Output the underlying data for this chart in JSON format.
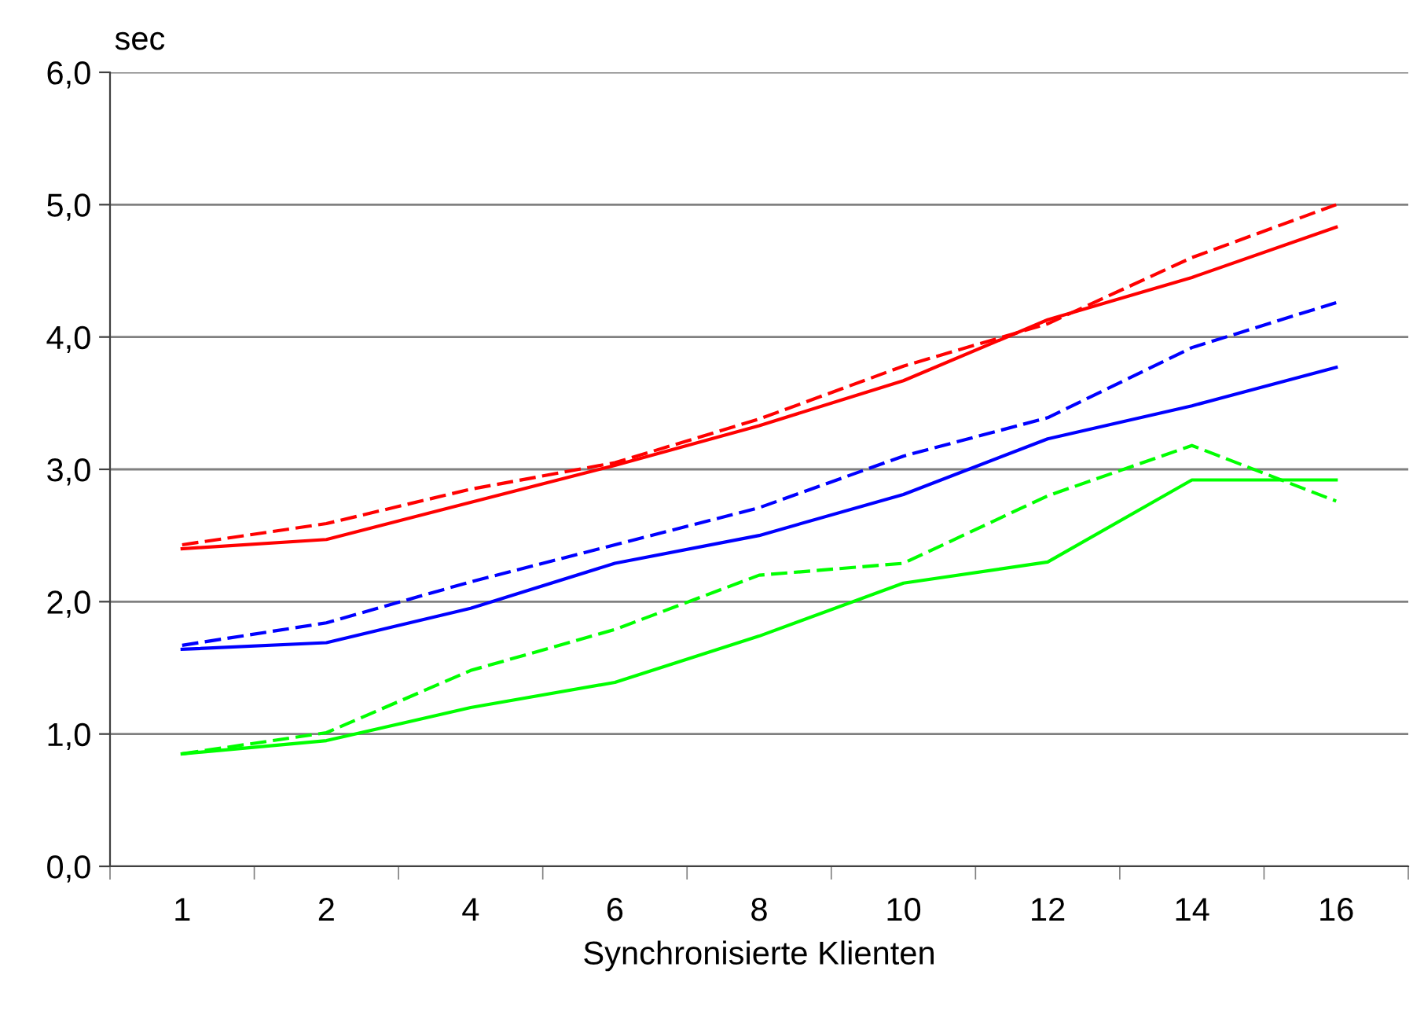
{
  "chart_data": {
    "type": "line",
    "ylabel": "sec",
    "xlabel": "Synchronisierte Klienten",
    "categories": [
      "1",
      "2",
      "4",
      "6",
      "8",
      "10",
      "12",
      "14",
      "16"
    ],
    "ylim": [
      0,
      6
    ],
    "yticks": [
      {
        "value": 0,
        "label": "0,0"
      },
      {
        "value": 1,
        "label": "1,0"
      },
      {
        "value": 2,
        "label": "2,0"
      },
      {
        "value": 3,
        "label": "3,0"
      },
      {
        "value": 4,
        "label": "4,0"
      },
      {
        "value": 5,
        "label": "5,0"
      },
      {
        "value": 6,
        "label": "6,0"
      }
    ],
    "grid": "y",
    "marker": "none",
    "series": [
      {
        "color": "#ff0000",
        "line_style": "solid",
        "values": [
          2.4,
          2.47,
          2.75,
          3.03,
          3.33,
          3.67,
          4.13,
          4.45,
          4.83
        ]
      },
      {
        "color": "#ff0000",
        "line_style": "dashed",
        "values": [
          2.43,
          2.59,
          2.85,
          3.05,
          3.38,
          3.78,
          4.1,
          4.6,
          5.0
        ]
      },
      {
        "color": "#0000ff",
        "line_style": "solid",
        "values": [
          1.64,
          1.69,
          1.95,
          2.29,
          2.5,
          2.81,
          3.23,
          3.48,
          3.77
        ]
      },
      {
        "color": "#0000ff",
        "line_style": "dashed",
        "values": [
          1.67,
          1.84,
          2.15,
          2.43,
          2.71,
          3.1,
          3.39,
          3.92,
          4.26
        ]
      },
      {
        "color": "#00ff00",
        "line_style": "solid",
        "values": [
          0.85,
          0.95,
          1.2,
          1.39,
          1.74,
          2.14,
          2.3,
          2.92,
          2.92
        ]
      },
      {
        "color": "#00ff00",
        "line_style": "dashed",
        "values": [
          0.85,
          1.01,
          1.48,
          1.79,
          2.2,
          2.29,
          2.8,
          3.18,
          2.76
        ]
      }
    ]
  }
}
